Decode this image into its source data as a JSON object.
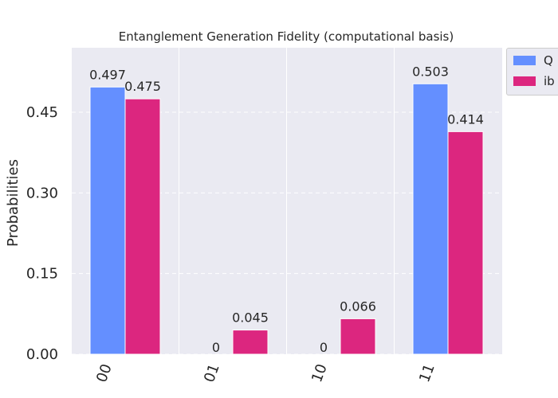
{
  "chart_data": {
    "type": "bar",
    "title": "Entanglement Generation Fidelity (computational basis)",
    "xlabel": "",
    "ylabel": "Probabilities",
    "categories": [
      "00",
      "01",
      "10",
      "11"
    ],
    "ylim": [
      0,
      0.57
    ],
    "yticks": [
      "0.00",
      "0.15",
      "0.30",
      "0.45"
    ],
    "grid": true,
    "legend_position": "outside-top-right",
    "series": [
      {
        "name": "Q",
        "color": "#648fff",
        "values": [
          0.497,
          0,
          0,
          0.503
        ],
        "labels": [
          "0.497",
          "",
          "",
          "0.503"
        ]
      },
      {
        "name": "ib",
        "color": "#dc267f",
        "values": [
          0.475,
          0.045,
          0.066,
          0.414
        ],
        "labels": [
          "0.475",
          "0.045",
          "0.066",
          "0.414"
        ]
      }
    ],
    "zero_labels": [
      {
        "category": "01",
        "text": "0"
      },
      {
        "category": "10",
        "text": "0"
      }
    ]
  }
}
